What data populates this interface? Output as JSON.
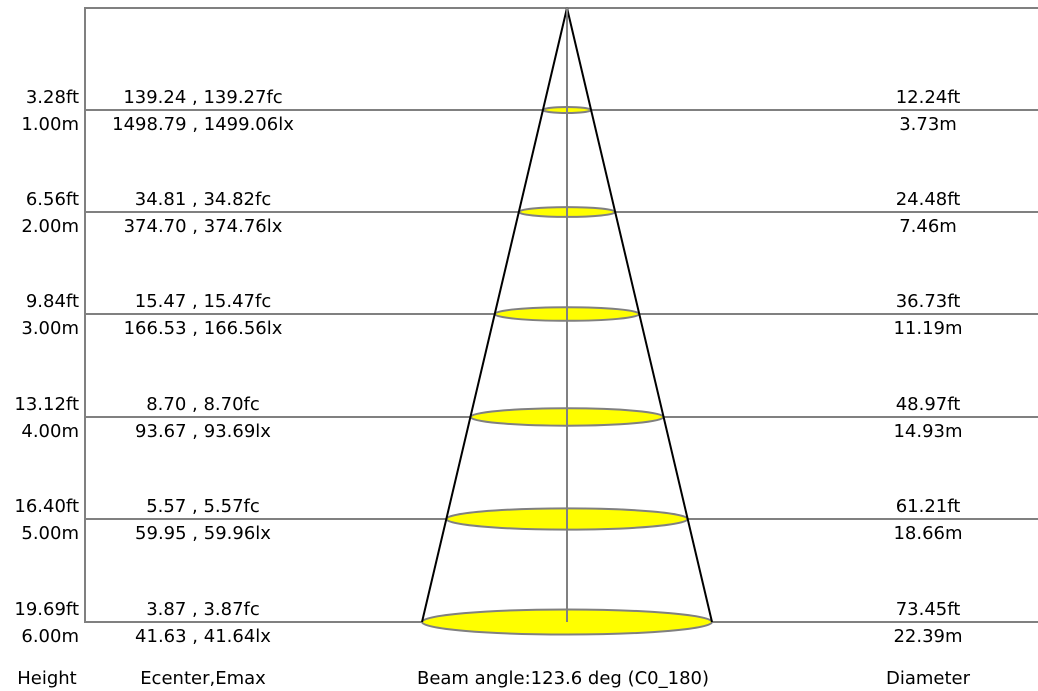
{
  "colors": {
    "frame": "#808080",
    "cone": "#000000",
    "ellipse_fill": "#ffff00",
    "text": "#000000"
  },
  "rows": [
    {
      "height_ft": "3.28ft",
      "height_m": "1.00m",
      "e_fc": "139.24 , 139.27fc",
      "e_lx": "1498.79 , 1499.06lx",
      "diam_ft": "12.24ft",
      "diam_m": "3.73m"
    },
    {
      "height_ft": "6.56ft",
      "height_m": "2.00m",
      "e_fc": "34.81 , 34.82fc",
      "e_lx": "374.70 , 374.76lx",
      "diam_ft": "24.48ft",
      "diam_m": "7.46m"
    },
    {
      "height_ft": "9.84ft",
      "height_m": "3.00m",
      "e_fc": "15.47 , 15.47fc",
      "e_lx": "166.53 , 166.56lx",
      "diam_ft": "36.73ft",
      "diam_m": "11.19m"
    },
    {
      "height_ft": "13.12ft",
      "height_m": "4.00m",
      "e_fc": "8.70 , 8.70fc",
      "e_lx": "93.67 , 93.69lx",
      "diam_ft": "48.97ft",
      "diam_m": "14.93m"
    },
    {
      "height_ft": "16.40ft",
      "height_m": "5.00m",
      "e_fc": "5.57 , 5.57fc",
      "e_lx": "59.95 , 59.96lx",
      "diam_ft": "61.21ft",
      "diam_m": "18.66m"
    },
    {
      "height_ft": "19.69ft",
      "height_m": "6.00m",
      "e_fc": "3.87 , 3.87fc",
      "e_lx": "41.63 , 41.64lx",
      "diam_ft": "73.45ft",
      "diam_m": "22.39m"
    }
  ],
  "footer": {
    "height_label": "Height",
    "ecenter_label": "Ecenter,Emax",
    "beam_label": "Beam angle:123.6 deg (C0_180)",
    "diameter_label": "Diameter"
  }
}
